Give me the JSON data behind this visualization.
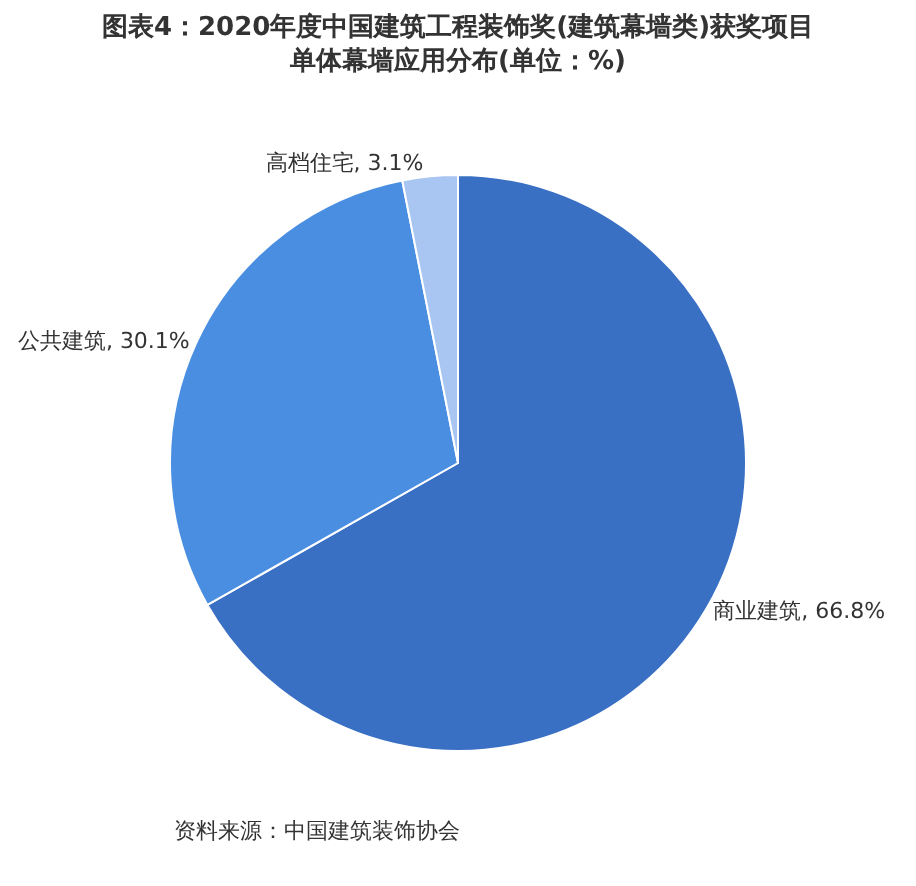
{
  "chart_data": {
    "type": "pie",
    "title": "图表4：2020年度中国建筑工程装饰奖(建筑幕墙类)获奖项目单体幕墙应用分布(单位：%)",
    "categories": [
      "商业建筑",
      "公共建筑",
      "高档住宅"
    ],
    "values": [
      66.8,
      30.1,
      3.1
    ],
    "value_labels": [
      "66.8%",
      "30.1%",
      "3.1%"
    ],
    "colors": [
      "#3a70c4",
      "#4a8ee2",
      "#a9c6f2"
    ],
    "annotations": [
      "资料来源：中国建筑装饰协会"
    ],
    "legend": false
  }
}
